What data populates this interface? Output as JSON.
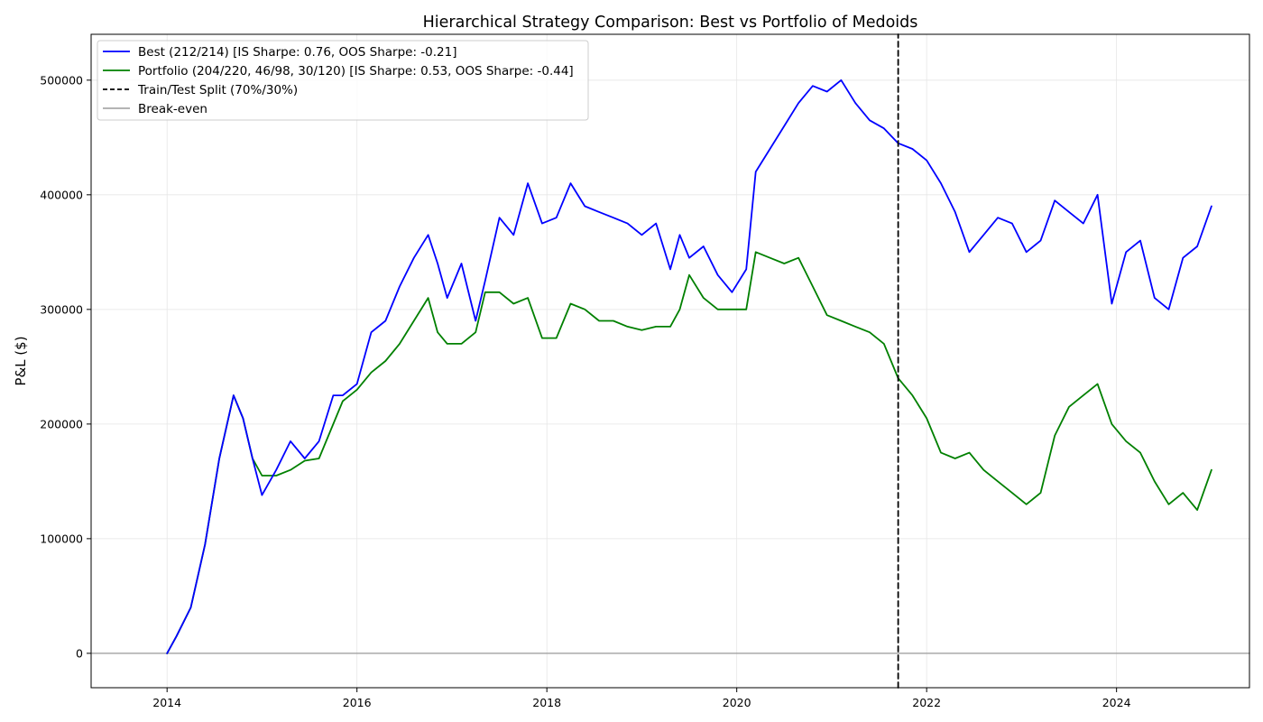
{
  "chart_data": {
    "type": "line",
    "title": "Hierarchical Strategy Comparison: Best vs Portfolio of Medoids",
    "xlabel": "",
    "ylabel": "P&L ($)",
    "xlim": [
      2013.2,
      2025.4
    ],
    "ylim": [
      -30000,
      540000
    ],
    "x_ticks": [
      2014,
      2016,
      2018,
      2020,
      2022,
      2024
    ],
    "x_tick_labels": [
      "2014",
      "2016",
      "2018",
      "2020",
      "2022",
      "2024"
    ],
    "y_ticks": [
      0,
      100000,
      200000,
      300000,
      400000,
      500000
    ],
    "y_tick_labels": [
      "0",
      "100000",
      "200000",
      "300000",
      "400000",
      "500000"
    ],
    "grid": true,
    "legend_position": "top-left",
    "x_unit": "year",
    "series": [
      {
        "name": "Best (212/214) [IS Sharpe: 0.76, OOS Sharpe: -0.21]",
        "color": "#0000ff",
        "x": [
          2014.0,
          2014.1,
          2014.25,
          2014.4,
          2014.55,
          2014.7,
          2014.8,
          2014.9,
          2015.0,
          2015.15,
          2015.3,
          2015.45,
          2015.6,
          2015.75,
          2015.85,
          2016.0,
          2016.15,
          2016.3,
          2016.45,
          2016.6,
          2016.75,
          2016.85,
          2016.95,
          2017.1,
          2017.25,
          2017.35,
          2017.5,
          2017.65,
          2017.8,
          2017.95,
          2018.1,
          2018.25,
          2018.4,
          2018.55,
          2018.7,
          2018.85,
          2019.0,
          2019.15,
          2019.3,
          2019.4,
          2019.5,
          2019.65,
          2019.8,
          2019.95,
          2020.1,
          2020.2,
          2020.35,
          2020.5,
          2020.65,
          2020.8,
          2020.95,
          2021.1,
          2021.25,
          2021.4,
          2021.55,
          2021.7,
          2021.85,
          2022.0,
          2022.15,
          2022.3,
          2022.45,
          2022.6,
          2022.75,
          2022.9,
          2023.05,
          2023.2,
          2023.35,
          2023.5,
          2023.65,
          2023.8,
          2023.95,
          2024.1,
          2024.25,
          2024.4,
          2024.55,
          2024.7,
          2024.85,
          2025.0
        ],
        "y": [
          0,
          15000,
          40000,
          95000,
          170000,
          225000,
          205000,
          170000,
          138000,
          160000,
          185000,
          170000,
          185000,
          225000,
          225000,
          235000,
          280000,
          290000,
          320000,
          345000,
          365000,
          340000,
          310000,
          340000,
          290000,
          325000,
          380000,
          365000,
          410000,
          375000,
          380000,
          410000,
          390000,
          385000,
          380000,
          375000,
          365000,
          375000,
          335000,
          365000,
          345000,
          355000,
          330000,
          315000,
          335000,
          420000,
          440000,
          460000,
          480000,
          495000,
          490000,
          500000,
          480000,
          465000,
          458000,
          445000,
          440000,
          430000,
          410000,
          385000,
          350000,
          365000,
          380000,
          375000,
          350000,
          360000,
          395000,
          385000,
          375000,
          400000,
          305000,
          350000,
          360000,
          310000,
          300000,
          345000,
          355000,
          390000
        ]
      },
      {
        "name": "Portfolio (204/220, 46/98, 30/120) [IS Sharpe: 0.53, OOS Sharpe: -0.44]",
        "color": "#008000",
        "x": [
          2014.0,
          2014.1,
          2014.25,
          2014.4,
          2014.55,
          2014.7,
          2014.8,
          2014.9,
          2015.0,
          2015.15,
          2015.3,
          2015.45,
          2015.6,
          2015.75,
          2015.85,
          2016.0,
          2016.15,
          2016.3,
          2016.45,
          2016.6,
          2016.75,
          2016.85,
          2016.95,
          2017.1,
          2017.25,
          2017.35,
          2017.5,
          2017.65,
          2017.8,
          2017.95,
          2018.1,
          2018.25,
          2018.4,
          2018.55,
          2018.7,
          2018.85,
          2019.0,
          2019.15,
          2019.3,
          2019.4,
          2019.5,
          2019.65,
          2019.8,
          2019.95,
          2020.1,
          2020.2,
          2020.35,
          2020.5,
          2020.65,
          2020.8,
          2020.95,
          2021.1,
          2021.25,
          2021.4,
          2021.55,
          2021.7,
          2021.85,
          2022.0,
          2022.15,
          2022.3,
          2022.45,
          2022.6,
          2022.75,
          2022.9,
          2023.05,
          2023.2,
          2023.35,
          2023.5,
          2023.65,
          2023.8,
          2023.95,
          2024.1,
          2024.25,
          2024.4,
          2024.55,
          2024.7,
          2024.85,
          2025.0
        ],
        "y": [
          0,
          15000,
          40000,
          95000,
          170000,
          225000,
          205000,
          170000,
          155000,
          155000,
          160000,
          168000,
          170000,
          200000,
          220000,
          230000,
          245000,
          255000,
          270000,
          290000,
          310000,
          280000,
          270000,
          270000,
          280000,
          315000,
          315000,
          305000,
          310000,
          275000,
          275000,
          305000,
          300000,
          290000,
          290000,
          285000,
          282000,
          285000,
          285000,
          300000,
          330000,
          310000,
          300000,
          300000,
          300000,
          350000,
          345000,
          340000,
          345000,
          320000,
          295000,
          290000,
          285000,
          280000,
          270000,
          240000,
          225000,
          205000,
          175000,
          170000,
          175000,
          160000,
          150000,
          140000,
          130000,
          140000,
          190000,
          215000,
          225000,
          235000,
          200000,
          185000,
          175000,
          150000,
          130000,
          140000,
          125000,
          160000
        ]
      },
      {
        "name": "Train/Test Split (70%/30%)",
        "color": "#000000",
        "dashed": true,
        "x": [
          2021.7,
          2021.7
        ],
        "y": [
          -30000,
          540000
        ]
      },
      {
        "name": "Break-even",
        "color": "#a9a9a9",
        "x": [
          2013.2,
          2025.4
        ],
        "y": [
          0,
          0
        ]
      }
    ]
  }
}
